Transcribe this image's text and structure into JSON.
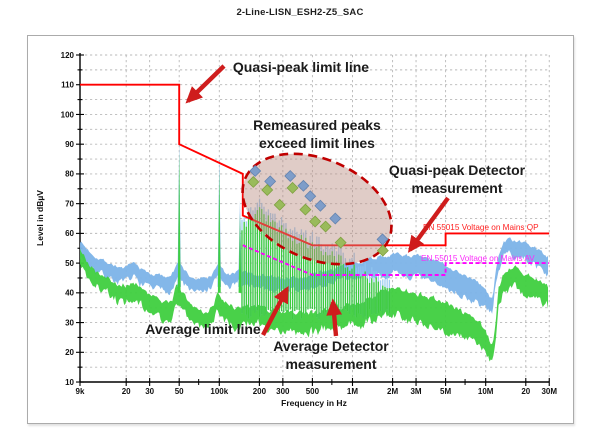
{
  "title": "2-Line-LISN_ESH2-Z5_SAC",
  "axes": {
    "xlabel": "Frequency in Hz",
    "ylabel": "Level in dBµV",
    "y_ticks": [
      120,
      110,
      100,
      90,
      80,
      70,
      60,
      50,
      40,
      30,
      20,
      10
    ],
    "x_ticks": [
      {
        "label": "9k",
        "f": 9000
      },
      {
        "label": "20",
        "f": 20000
      },
      {
        "label": "30",
        "f": 30000
      },
      {
        "label": "50",
        "f": 50000
      },
      {
        "label": "100k",
        "f": 100000
      },
      {
        "label": "200",
        "f": 200000
      },
      {
        "label": "300",
        "f": 300000
      },
      {
        "label": "500",
        "f": 500000
      },
      {
        "label": "1M",
        "f": 1000000
      },
      {
        "label": "2M",
        "f": 2000000
      },
      {
        "label": "3M",
        "f": 3000000
      },
      {
        "label": "5M",
        "f": 5000000
      },
      {
        "label": "10M",
        "f": 10000000
      },
      {
        "label": "20",
        "f": 20000000
      },
      {
        "label": "30M",
        "f": 30000000
      }
    ],
    "x_minor_ticks": [
      70000,
      700000,
      7000000
    ]
  },
  "annotations": {
    "qp_limit": "Quasi-peak limit line",
    "remeasured_1": "Remeasured peaks",
    "remeasured_2": "exceed limit lines",
    "qp_detector_1": "Quasi-peak Detector",
    "qp_detector_2": "measurement",
    "av_limit": "Average limit line",
    "av_detector_1": "Average Detector",
    "av_detector_2": "measurement"
  },
  "colors": {
    "qp_limit_line": "#ff0000",
    "av_limit_line": "#ff00ff",
    "qp_trace": "#7cb3e8",
    "av_trace": "#3fcf3f",
    "comb_blue": "#8fc4ee",
    "comb_green": "#3ecb3e",
    "marker_blue_fill": "#7e9dc9",
    "marker_blue_stroke": "#6383af",
    "marker_green_fill": "#99bb5b",
    "marker_green_stroke": "#7fa040",
    "arrow": "#cf1d1d",
    "ellipse_stroke": "#c00000",
    "grid": "#b9b9b9"
  },
  "chart_data": {
    "type": "line",
    "title": "2-Line-LISN_ESH2-Z5_SAC",
    "xlabel": "Frequency in Hz",
    "ylabel": "Level in dBµV",
    "x_scale": "log",
    "xlim": [
      9000,
      30000000
    ],
    "ylim": [
      10,
      120
    ],
    "grid": "dashed, 5 dB horizontal, decade-subdivision vertical",
    "limit_lines": [
      {
        "name": "EN 55015 Voltage on Mains QP",
        "color_key": "qp_limit_line",
        "style": "solid",
        "points": [
          [
            9000,
            110
          ],
          [
            50000,
            110
          ],
          [
            50000,
            90
          ],
          [
            150000,
            80
          ],
          [
            150000,
            66
          ],
          [
            500000,
            56
          ],
          [
            5000000,
            56
          ],
          [
            5000000,
            60
          ],
          [
            30000000,
            60
          ]
        ]
      },
      {
        "name": "EN 55015 Voltage on Mains AV",
        "color_key": "av_limit_line",
        "style": "dashed",
        "points": [
          [
            150000,
            56
          ],
          [
            500000,
            46
          ],
          [
            5000000,
            46
          ],
          [
            5000000,
            50
          ],
          [
            30000000,
            50
          ]
        ]
      }
    ],
    "traces": [
      {
        "name": "Quasi-peak Detector measurement",
        "color_key": "qp_trace",
        "noise_db": 1.2,
        "top_envelope": [
          [
            9000,
            57.5
          ],
          [
            10000,
            55
          ],
          [
            12000,
            52
          ],
          [
            15000,
            50
          ],
          [
            18000,
            48.5
          ],
          [
            20000,
            48.5
          ],
          [
            23000,
            50
          ],
          [
            26000,
            48
          ],
          [
            30000,
            46.5
          ],
          [
            35000,
            46
          ],
          [
            40000,
            45.5
          ],
          [
            45000,
            47
          ],
          [
            48000,
            50
          ],
          [
            52000,
            49
          ],
          [
            60000,
            45.5
          ],
          [
            70000,
            44.5
          ],
          [
            80000,
            45
          ],
          [
            90000,
            46.5
          ],
          [
            97000,
            50
          ],
          [
            105000,
            48
          ],
          [
            115000,
            46
          ],
          [
            130000,
            46.5
          ],
          [
            145000,
            47.5
          ],
          [
            200000,
            46
          ],
          [
            300000,
            45
          ],
          [
            400000,
            45
          ],
          [
            500000,
            46
          ],
          [
            700000,
            48
          ],
          [
            1000000,
            50
          ],
          [
            1500000,
            52
          ],
          [
            2000000,
            53
          ],
          [
            3000000,
            52.5
          ],
          [
            4000000,
            51
          ],
          [
            5000000,
            49.5
          ],
          [
            6000000,
            47.5
          ],
          [
            7000000,
            46
          ],
          [
            8000000,
            44.5
          ],
          [
            9000000,
            43
          ],
          [
            10000000,
            41
          ],
          [
            10800000,
            38
          ],
          [
            11300000,
            39
          ],
          [
            11800000,
            46
          ],
          [
            12500000,
            53
          ],
          [
            13500000,
            57
          ],
          [
            15000000,
            58
          ],
          [
            17000000,
            57.5
          ],
          [
            20000000,
            56.5
          ],
          [
            23000000,
            55.5
          ],
          [
            26000000,
            54
          ],
          [
            30000000,
            52
          ]
        ],
        "thickness_envelope": [
          [
            9000,
            5
          ],
          [
            50000,
            5
          ],
          [
            150000,
            4
          ],
          [
            1000000,
            5
          ],
          [
            2000000,
            7
          ],
          [
            5000000,
            8
          ],
          [
            9000000,
            7
          ],
          [
            11000000,
            5
          ],
          [
            13000000,
            5
          ],
          [
            30000000,
            6
          ]
        ]
      },
      {
        "name": "Average Detector measurement",
        "color_key": "av_trace",
        "noise_db": 1.8,
        "top_envelope": [
          [
            9000,
            55
          ],
          [
            10000,
            51
          ],
          [
            12000,
            47
          ],
          [
            15000,
            44.5
          ],
          [
            18000,
            43
          ],
          [
            20000,
            42.5
          ],
          [
            23000,
            43.5
          ],
          [
            26000,
            41.5
          ],
          [
            30000,
            39
          ],
          [
            35000,
            37.5
          ],
          [
            40000,
            36.5
          ],
          [
            45000,
            38
          ],
          [
            48000,
            43
          ],
          [
            52000,
            41
          ],
          [
            60000,
            36
          ],
          [
            70000,
            34
          ],
          [
            80000,
            33.5
          ],
          [
            90000,
            35.5
          ],
          [
            97000,
            40
          ],
          [
            105000,
            38
          ],
          [
            115000,
            36
          ],
          [
            130000,
            35.5
          ],
          [
            145000,
            36
          ],
          [
            200000,
            35
          ],
          [
            300000,
            34
          ],
          [
            500000,
            33.5
          ],
          [
            1000000,
            36
          ],
          [
            1500000,
            39
          ],
          [
            2000000,
            42
          ],
          [
            3000000,
            40
          ],
          [
            4000000,
            38
          ],
          [
            5000000,
            36.5
          ],
          [
            6000000,
            35
          ],
          [
            7000000,
            33
          ],
          [
            8000000,
            31.5
          ],
          [
            9000000,
            30
          ],
          [
            10000000,
            27.5
          ],
          [
            10800000,
            23.5
          ],
          [
            11300000,
            22.5
          ],
          [
            11800000,
            30
          ],
          [
            12500000,
            42
          ],
          [
            13500000,
            46
          ],
          [
            15000000,
            47.5
          ],
          [
            17000000,
            48
          ],
          [
            20000000,
            46
          ],
          [
            23000000,
            45
          ],
          [
            26000000,
            44
          ],
          [
            30000000,
            41.5
          ]
        ],
        "thickness_envelope": [
          [
            9000,
            5
          ],
          [
            50000,
            6
          ],
          [
            150000,
            6
          ],
          [
            1000000,
            7
          ],
          [
            2000000,
            9
          ],
          [
            5000000,
            10
          ],
          [
            9000000,
            8
          ],
          [
            11000000,
            5
          ],
          [
            13000000,
            6
          ],
          [
            30000000,
            7
          ]
        ]
      }
    ],
    "main_spikes": [
      {
        "f": 50000,
        "qp_db": 91,
        "av_db": 87.5
      },
      {
        "f": 100000,
        "qp_db": 86,
        "av_db": 81.5
      },
      {
        "f": 143000,
        "qp_db": 71,
        "av_db": 66.5
      }
    ],
    "comb": {
      "f_start": 148000,
      "f_end": 1900000,
      "base_db": 33,
      "qp_tip_offset_db": 2.8,
      "green_top_envelope": [
        [
          148000,
          62
        ],
        [
          170000,
          66
        ],
        [
          200000,
          67
        ],
        [
          240000,
          64
        ],
        [
          280000,
          62
        ],
        [
          330000,
          60
        ],
        [
          400000,
          58
        ],
        [
          500000,
          56
        ],
        [
          620000,
          53
        ],
        [
          800000,
          51
        ],
        [
          1000000,
          48.5
        ],
        [
          1300000,
          45.5
        ],
        [
          1600000,
          43
        ],
        [
          1900000,
          41
        ]
      ]
    },
    "markers": {
      "qp_remeasured": [
        [
          186000,
          81
        ],
        [
          241000,
          77.5
        ],
        [
          341000,
          79.3
        ],
        [
          428000,
          76
        ],
        [
          482000,
          72.5
        ],
        [
          574000,
          69.3
        ],
        [
          743000,
          65
        ],
        [
          1680000,
          58
        ]
      ],
      "av_remeasured": [
        [
          180000,
          77.3
        ],
        [
          229000,
          74.6
        ],
        [
          284000,
          69.6
        ],
        [
          355000,
          75.3
        ],
        [
          443000,
          68
        ],
        [
          524000,
          64
        ],
        [
          628000,
          62.3
        ],
        [
          815000,
          56.9
        ],
        [
          1690000,
          54.2
        ]
      ]
    }
  }
}
